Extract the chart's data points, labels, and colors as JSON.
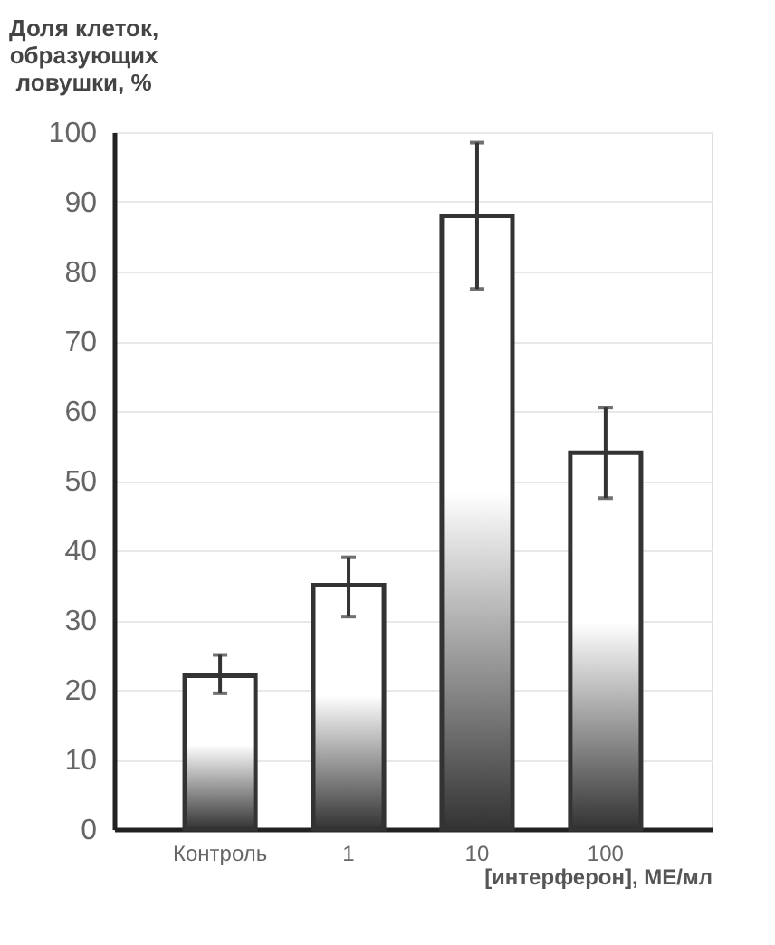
{
  "chart_data": {
    "type": "bar",
    "ylabel": "Доля клеток,\nобразующих\nловушки, %",
    "xlabel": "[интерферон], МЕ/мл",
    "categories": [
      "Контроль",
      "1",
      "10",
      "100"
    ],
    "values": [
      22,
      35,
      88,
      54
    ],
    "errors": [
      [
        19.5,
        25
      ],
      [
        30.5,
        39
      ],
      [
        77.5,
        98.5
      ],
      [
        47.5,
        60.5
      ]
    ],
    "color": "#333333",
    "ylim": [
      0,
      100
    ],
    "yticks": [
      0,
      10,
      20,
      30,
      40,
      50,
      60,
      70,
      80,
      90,
      100
    ],
    "grid": "y"
  }
}
